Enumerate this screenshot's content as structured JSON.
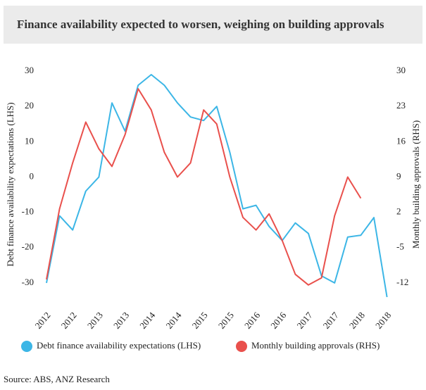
{
  "chart_data": {
    "type": "line",
    "title": "Finance availability expected to worsen, weighing on building approvals",
    "y_label": "Debt finance availability expectations (LHS)",
    "y2_label": "Monthly building approvals (RHS)",
    "source": "Source: ABS, ANZ Research",
    "categories": [
      "2012",
      null,
      "2012",
      null,
      "2013",
      null,
      "2013",
      null,
      "2014",
      null,
      "2014",
      null,
      "2015",
      null,
      "2015",
      null,
      "2016",
      null,
      "2016",
      null,
      "2017",
      null,
      "2017",
      null,
      "2018",
      null,
      "2018"
    ],
    "ylim": [
      -36,
      32
    ],
    "yticks": [
      -30,
      -20,
      -10,
      0,
      10,
      20,
      30
    ],
    "y2lim": [
      -16.2,
      31.4
    ],
    "y2ticks": [
      -12,
      -5,
      2,
      9,
      16,
      23,
      30
    ],
    "legend": "bottom",
    "series": [
      {
        "name": "Debt finance availability expectations (LHS)",
        "color": "#3cb6e6",
        "values": [
          -30,
          -11,
          -15,
          -4,
          0,
          21,
          13,
          26,
          29,
          26,
          21,
          17,
          16,
          20,
          7,
          -9,
          -8,
          -14,
          -18,
          -13,
          -16,
          -28,
          -30,
          -17,
          -16.5,
          -11.5,
          -34
        ]
      },
      {
        "name": "Monthly building approvals (RHS)",
        "color": "#e9504c",
        "axis": "y2",
        "values": [
          -11.3,
          2.7,
          11.8,
          19.9,
          14.6,
          11.1,
          17.4,
          26.5,
          22.3,
          13.9,
          9,
          11.8,
          22.3,
          19.5,
          9,
          1,
          -1.5,
          1.7,
          -3.6,
          -10.3,
          -12.4,
          -11,
          1.3,
          9,
          4.8,
          null,
          null
        ]
      }
    ]
  }
}
